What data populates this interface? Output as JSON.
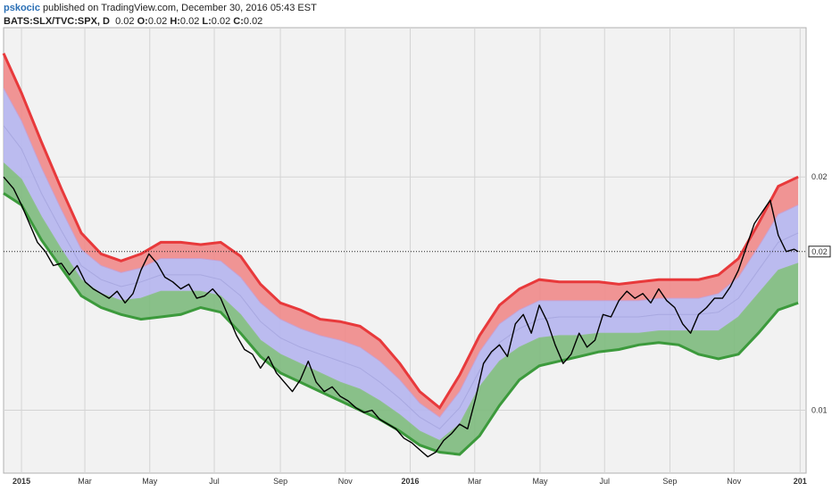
{
  "header": {
    "author": "pskocic",
    "published": " published on TradingView.com, December 30, 2016 05:43 EST",
    "symbol": "BATS:SLX/TVC:SPX, D",
    "o_label": "O:",
    "o_value": "0.02",
    "h_label": "H:",
    "h_value": "0.02",
    "l_label": "L:",
    "l_value": "0.02",
    "c_label": "C:",
    "c_value": "0.02",
    "last": "0.02"
  },
  "colors": {
    "upper": "#e8393b",
    "upper_fill": "#f08a8a",
    "mid_fill": "#b5b5ee",
    "lower": "#3c9a3c",
    "lower_fill": "#7dba7d",
    "price": "#000000",
    "grid": "#d4d4d4",
    "plot_bg": "#f2f2f2"
  },
  "chart_data": {
    "type": "line",
    "title": "",
    "xlabel": "",
    "ylabel": "",
    "x_ticks": [
      {
        "label": "2015",
        "bold": true,
        "t": 0.0
      },
      {
        "label": "Mar",
        "bold": false,
        "t": 0.159
      },
      {
        "label": "May",
        "bold": false,
        "t": 0.322
      },
      {
        "label": "Jul",
        "bold": false,
        "t": 0.484
      },
      {
        "label": "Sep",
        "bold": false,
        "t": 0.65
      },
      {
        "label": "Nov",
        "bold": false,
        "t": 0.813
      },
      {
        "label": "2016",
        "bold": true,
        "t": 0.976
      },
      {
        "label": "Mar",
        "bold": false,
        "t": 1.138
      },
      {
        "label": "May",
        "bold": false,
        "t": 1.302
      },
      {
        "label": "Jul",
        "bold": false,
        "t": 1.464
      },
      {
        "label": "Sep",
        "bold": false,
        "t": 1.628
      },
      {
        "label": "Nov",
        "bold": false,
        "t": 1.789
      },
      {
        "label": "201",
        "bold": true,
        "t": 1.955
      }
    ],
    "y_ticks": [
      {
        "label": "0.02",
        "v": 0.02
      },
      {
        "label": "0.01",
        "v": 0.01
      }
    ],
    "ylim": [
      0.0073,
      0.0264
    ],
    "xlim": [
      -0.045,
      1.97
    ],
    "last_value": 0.0168,
    "series": [
      {
        "role": "upper_band",
        "t": [
          -0.045,
          0.0,
          0.05,
          0.1,
          0.15,
          0.2,
          0.25,
          0.3,
          0.35,
          0.4,
          0.45,
          0.5,
          0.55,
          0.6,
          0.65,
          0.7,
          0.75,
          0.8,
          0.85,
          0.9,
          0.95,
          1.0,
          1.05,
          1.1,
          1.15,
          1.2,
          1.25,
          1.3,
          1.35,
          1.4,
          1.45,
          1.5,
          1.55,
          1.6,
          1.65,
          1.7,
          1.75,
          1.8,
          1.85,
          1.9,
          1.95
        ],
        "v": [
          0.0253,
          0.0236,
          0.0215,
          0.0195,
          0.0176,
          0.0167,
          0.0164,
          0.0167,
          0.0172,
          0.0172,
          0.0171,
          0.0172,
          0.0166,
          0.0154,
          0.0146,
          0.0143,
          0.0139,
          0.0138,
          0.0136,
          0.013,
          0.012,
          0.0108,
          0.0101,
          0.0115,
          0.0132,
          0.0145,
          0.0152,
          0.0156,
          0.0155,
          0.0155,
          0.0155,
          0.0154,
          0.0155,
          0.0156,
          0.0156,
          0.0156,
          0.0158,
          0.0165,
          0.018,
          0.0196,
          0.02
        ]
      },
      {
        "role": "upper_mid",
        "t": [
          -0.045,
          0.0,
          0.05,
          0.1,
          0.15,
          0.2,
          0.25,
          0.3,
          0.35,
          0.4,
          0.45,
          0.5,
          0.55,
          0.6,
          0.65,
          0.7,
          0.75,
          0.8,
          0.85,
          0.9,
          0.95,
          1.0,
          1.05,
          1.1,
          1.15,
          1.2,
          1.25,
          1.3,
          1.35,
          1.4,
          1.45,
          1.5,
          1.55,
          1.6,
          1.65,
          1.7,
          1.75,
          1.8,
          1.85,
          1.9,
          1.95
        ],
        "v": [
          0.0238,
          0.0224,
          0.0204,
          0.0186,
          0.0169,
          0.0162,
          0.0159,
          0.0161,
          0.0165,
          0.0165,
          0.0165,
          0.0164,
          0.0157,
          0.0146,
          0.0139,
          0.0135,
          0.0132,
          0.013,
          0.0127,
          0.0121,
          0.0113,
          0.0103,
          0.0097,
          0.0108,
          0.0125,
          0.0137,
          0.0143,
          0.0147,
          0.0147,
          0.0147,
          0.0147,
          0.0147,
          0.0147,
          0.0148,
          0.0148,
          0.0148,
          0.015,
          0.0157,
          0.017,
          0.0184,
          0.0188
        ]
      },
      {
        "role": "mid",
        "t": [
          -0.045,
          0.0,
          0.05,
          0.1,
          0.15,
          0.2,
          0.25,
          0.3,
          0.35,
          0.4,
          0.45,
          0.5,
          0.55,
          0.6,
          0.65,
          0.7,
          0.75,
          0.8,
          0.85,
          0.9,
          0.95,
          1.0,
          1.05,
          1.1,
          1.15,
          1.2,
          1.25,
          1.3,
          1.35,
          1.4,
          1.45,
          1.5,
          1.55,
          1.6,
          1.65,
          1.7,
          1.75,
          1.8,
          1.85,
          1.9,
          1.95
        ],
        "v": [
          0.0222,
          0.0212,
          0.0193,
          0.0177,
          0.0162,
          0.0156,
          0.0153,
          0.0155,
          0.0158,
          0.0158,
          0.0158,
          0.0156,
          0.0149,
          0.0138,
          0.0131,
          0.0127,
          0.0124,
          0.0121,
          0.0118,
          0.0112,
          0.0105,
          0.0097,
          0.0092,
          0.0101,
          0.0117,
          0.0129,
          0.0135,
          0.0139,
          0.014,
          0.014,
          0.014,
          0.014,
          0.014,
          0.0141,
          0.0141,
          0.0141,
          0.0142,
          0.0148,
          0.016,
          0.0172,
          0.0176
        ]
      },
      {
        "role": "lower_mid",
        "t": [
          -0.045,
          0.0,
          0.05,
          0.1,
          0.15,
          0.2,
          0.25,
          0.3,
          0.35,
          0.4,
          0.45,
          0.5,
          0.55,
          0.6,
          0.65,
          0.7,
          0.75,
          0.8,
          0.85,
          0.9,
          0.95,
          1.0,
          1.05,
          1.1,
          1.15,
          1.2,
          1.25,
          1.3,
          1.35,
          1.4,
          1.45,
          1.5,
          1.55,
          1.6,
          1.65,
          1.7,
          1.75,
          1.8,
          1.85,
          1.9,
          1.95
        ],
        "v": [
          0.0206,
          0.0199,
          0.0183,
          0.0169,
          0.0156,
          0.015,
          0.0147,
          0.0148,
          0.0151,
          0.0151,
          0.0151,
          0.0149,
          0.0141,
          0.013,
          0.0124,
          0.012,
          0.0116,
          0.0112,
          0.0109,
          0.0104,
          0.0098,
          0.0091,
          0.0087,
          0.0094,
          0.011,
          0.0121,
          0.0127,
          0.0131,
          0.0132,
          0.0132,
          0.0133,
          0.0133,
          0.0133,
          0.0134,
          0.0134,
          0.0134,
          0.0134,
          0.014,
          0.015,
          0.016,
          0.0163
        ]
      },
      {
        "role": "lower_band",
        "t": [
          -0.045,
          0.0,
          0.05,
          0.1,
          0.15,
          0.2,
          0.25,
          0.3,
          0.35,
          0.4,
          0.45,
          0.5,
          0.55,
          0.6,
          0.65,
          0.7,
          0.75,
          0.8,
          0.85,
          0.9,
          0.95,
          1.0,
          1.05,
          1.1,
          1.15,
          1.2,
          1.25,
          1.3,
          1.35,
          1.4,
          1.45,
          1.5,
          1.55,
          1.6,
          1.65,
          1.7,
          1.75,
          1.8,
          1.85,
          1.9,
          1.95
        ],
        "v": [
          0.0193,
          0.0188,
          0.0173,
          0.0161,
          0.0149,
          0.0144,
          0.0141,
          0.0139,
          0.014,
          0.0141,
          0.0144,
          0.0142,
          0.0133,
          0.0123,
          0.0116,
          0.0112,
          0.0108,
          0.0104,
          0.01,
          0.0096,
          0.0091,
          0.0085,
          0.0082,
          0.0081,
          0.0089,
          0.0102,
          0.0113,
          0.0119,
          0.0121,
          0.0123,
          0.0125,
          0.0126,
          0.0128,
          0.0129,
          0.0128,
          0.0124,
          0.0122,
          0.0124,
          0.0133,
          0.0143,
          0.0146
        ]
      },
      {
        "role": "price",
        "t": [
          -0.045,
          -0.02,
          0.0,
          0.02,
          0.04,
          0.06,
          0.08,
          0.1,
          0.12,
          0.14,
          0.16,
          0.18,
          0.2,
          0.22,
          0.24,
          0.26,
          0.28,
          0.3,
          0.32,
          0.34,
          0.36,
          0.38,
          0.4,
          0.42,
          0.44,
          0.46,
          0.48,
          0.5,
          0.52,
          0.54,
          0.56,
          0.58,
          0.6,
          0.62,
          0.64,
          0.66,
          0.68,
          0.7,
          0.72,
          0.74,
          0.76,
          0.78,
          0.8,
          0.82,
          0.84,
          0.86,
          0.88,
          0.9,
          0.92,
          0.94,
          0.96,
          0.98,
          1.0,
          1.02,
          1.04,
          1.06,
          1.08,
          1.1,
          1.12,
          1.14,
          1.16,
          1.18,
          1.2,
          1.22,
          1.24,
          1.26,
          1.28,
          1.3,
          1.32,
          1.34,
          1.36,
          1.38,
          1.4,
          1.42,
          1.44,
          1.46,
          1.48,
          1.5,
          1.52,
          1.54,
          1.56,
          1.58,
          1.6,
          1.62,
          1.64,
          1.66,
          1.68,
          1.7,
          1.72,
          1.74,
          1.76,
          1.78,
          1.8,
          1.82,
          1.84,
          1.86,
          1.88,
          1.9,
          1.92,
          1.94,
          1.95
        ],
        "v": [
          0.02,
          0.0195,
          0.0188,
          0.018,
          0.0172,
          0.0168,
          0.0162,
          0.0163,
          0.0158,
          0.0162,
          0.0155,
          0.0152,
          0.015,
          0.0148,
          0.0151,
          0.0146,
          0.015,
          0.016,
          0.0167,
          0.0163,
          0.0157,
          0.0155,
          0.0152,
          0.0154,
          0.0148,
          0.0149,
          0.0152,
          0.0148,
          0.014,
          0.0132,
          0.0126,
          0.0124,
          0.0118,
          0.0123,
          0.0116,
          0.0112,
          0.0108,
          0.0113,
          0.0121,
          0.0112,
          0.0108,
          0.011,
          0.0106,
          0.0104,
          0.0101,
          0.0099,
          0.01,
          0.0096,
          0.0094,
          0.0092,
          0.0088,
          0.0086,
          0.0083,
          0.008,
          0.0082,
          0.0087,
          0.009,
          0.0094,
          0.0092,
          0.0105,
          0.012,
          0.0125,
          0.0128,
          0.0123,
          0.0137,
          0.0141,
          0.0133,
          0.0145,
          0.0138,
          0.0128,
          0.012,
          0.0124,
          0.0133,
          0.0127,
          0.013,
          0.0141,
          0.014,
          0.0147,
          0.0151,
          0.0148,
          0.015,
          0.0146,
          0.0152,
          0.0147,
          0.0144,
          0.0137,
          0.0133,
          0.0141,
          0.0144,
          0.0148,
          0.0148,
          0.0153,
          0.016,
          0.017,
          0.018,
          0.0185,
          0.019,
          0.0175,
          0.0168,
          0.0169,
          0.0168
        ]
      }
    ]
  }
}
